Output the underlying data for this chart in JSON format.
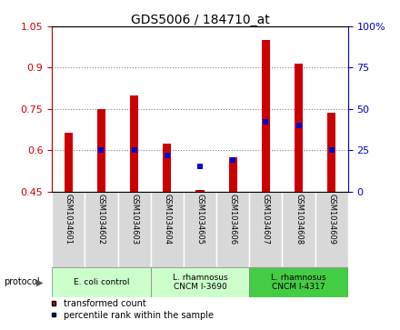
{
  "title": "GDS5006 / 184710_at",
  "samples": [
    "GSM1034601",
    "GSM1034602",
    "GSM1034603",
    "GSM1034604",
    "GSM1034605",
    "GSM1034606",
    "GSM1034607",
    "GSM1034608",
    "GSM1034609"
  ],
  "transformed_count": [
    0.665,
    0.75,
    0.8,
    0.625,
    0.455,
    0.575,
    1.0,
    0.915,
    0.735
  ],
  "percentile_pct": [
    0,
    25,
    25,
    22,
    15,
    19,
    42,
    40,
    25
  ],
  "ylim_left": [
    0.45,
    1.05
  ],
  "ylim_right": [
    0,
    100
  ],
  "yticks_left": [
    0.45,
    0.6,
    0.75,
    0.9,
    1.05
  ],
  "yticks_right": [
    0,
    25,
    50,
    75,
    100
  ],
  "ytick_labels_right": [
    "0",
    "25",
    "50",
    "75",
    "100%"
  ],
  "ytick_labels_left": [
    "0.45",
    "0.6",
    "0.75",
    "0.9",
    "1.05"
  ],
  "bar_color": "#cc0000",
  "dot_color": "#0000cc",
  "left_tick_color": "#cc0000",
  "right_tick_color": "#0000cc",
  "protocol_spans": [
    {
      "label": "E. coli control",
      "start": 0,
      "end": 3,
      "color": "#ccffcc"
    },
    {
      "label": "L. rhamnosus\nCNCM I-3690",
      "start": 3,
      "end": 6,
      "color": "#ccffcc"
    },
    {
      "label": "L. rhamnosus\nCNCM I-4317",
      "start": 6,
      "end": 9,
      "color": "#44cc44"
    }
  ],
  "protocol_label": "protocol",
  "legend_items": [
    {
      "color": "#cc0000",
      "label": "transformed count"
    },
    {
      "color": "#0000cc",
      "label": "percentile rank within the sample"
    }
  ],
  "grid_color": "#888888",
  "sample_bg_color": "#d8d8d8",
  "plot_bg": "#ffffff",
  "bar_width": 0.25
}
